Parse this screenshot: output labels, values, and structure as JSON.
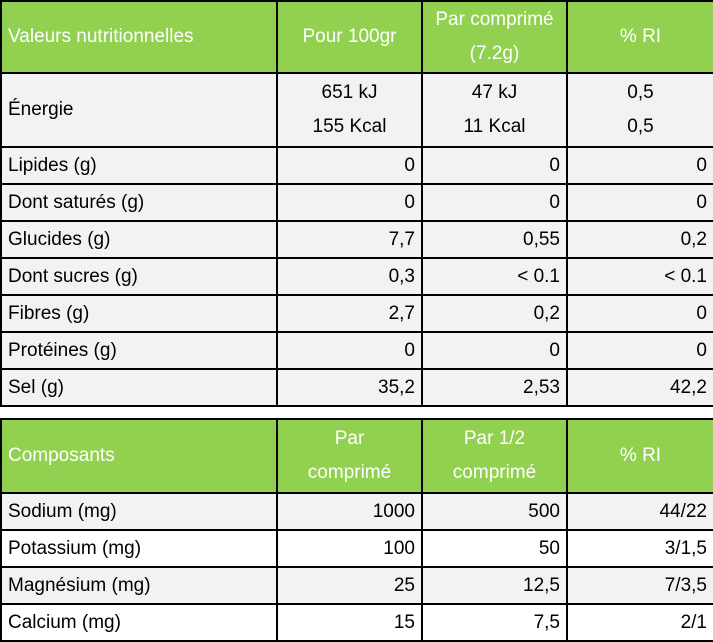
{
  "nutrition": {
    "headers": [
      "Valeurs nutritionnelles",
      "Pour 100gr",
      "Par comprimé",
      "(7.2g)",
      "% RI"
    ],
    "energy": {
      "label": "Énergie",
      "per100": [
        "651 kJ",
        "155 Kcal"
      ],
      "per_tablet": [
        "47 kJ",
        "11 Kcal"
      ],
      "ri": [
        "0,5",
        "0,5"
      ]
    },
    "rows": [
      {
        "label": "Lipides (g)",
        "per100": "0",
        "per_tablet": "0",
        "ri": "0"
      },
      {
        "label": "Dont saturés (g)",
        "per100": "0",
        "per_tablet": "0",
        "ri": "0"
      },
      {
        "label": "Glucides (g)",
        "per100": "7,7",
        "per_tablet": "0,55",
        "ri": "0,2"
      },
      {
        "label": "Dont sucres (g)",
        "per100": "0,3",
        "per_tablet": "< 0.1",
        "ri": "< 0.1"
      },
      {
        "label": "Fibres (g)",
        "per100": "2,7",
        "per_tablet": "0,2",
        "ri": "0"
      },
      {
        "label": "Protéines (g)",
        "per100": "0",
        "per_tablet": "0",
        "ri": "0"
      },
      {
        "label": "Sel (g)",
        "per100": "35,2",
        "per_tablet": "2,53",
        "ri": "42,2"
      }
    ]
  },
  "components": {
    "headers": [
      "Composants",
      "Par",
      "comprimé",
      "Par 1/2",
      "comprimé",
      "% RI"
    ],
    "rows": [
      {
        "label": "Sodium (mg)",
        "per_tablet": "1000",
        "per_half": "500",
        "ri": "44/22"
      },
      {
        "label": "Potassium (mg)",
        "per_tablet": "100",
        "per_half": "50",
        "ri": "3/1,5"
      },
      {
        "label": "Magnésium (mg)",
        "per_tablet": "25",
        "per_half": "12,5",
        "ri": "7/3,5"
      },
      {
        "label": "Calcium (mg)",
        "per_tablet": "15",
        "per_half": "7,5",
        "ri": "2/1"
      }
    ]
  }
}
